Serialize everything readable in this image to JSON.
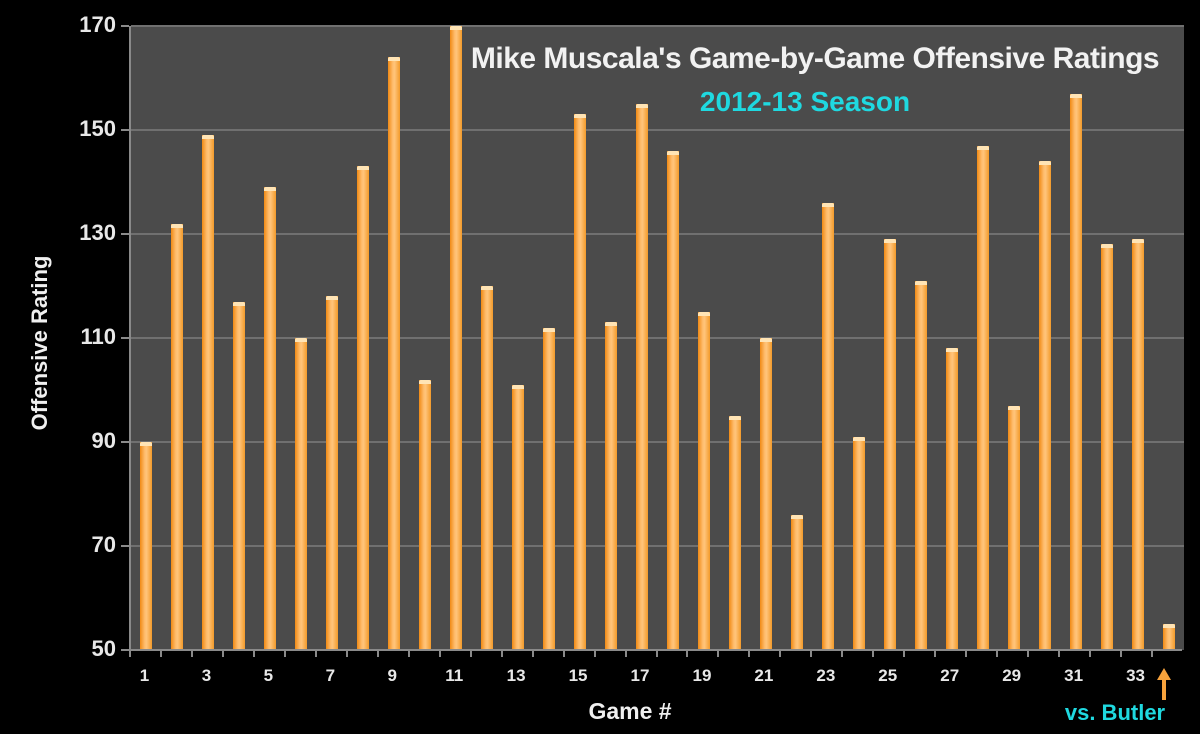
{
  "chart_data": {
    "type": "bar",
    "title": "Mike Muscala's Game-by-Game Offensive Ratings",
    "subtitle": "2012-13 Season",
    "xlabel": "Game #",
    "ylabel": "Offensive Rating",
    "ylim": [
      50,
      170
    ],
    "yticks": [
      50,
      70,
      90,
      110,
      130,
      150,
      170
    ],
    "xtick_labels": [
      "1",
      "3",
      "5",
      "7",
      "9",
      "11",
      "13",
      "15",
      "17",
      "19",
      "21",
      "23",
      "25",
      "27",
      "29",
      "31",
      "33"
    ],
    "grid": true,
    "annotation": "vs. Butler",
    "annotation_target": 34,
    "categories": [
      1,
      2,
      3,
      4,
      5,
      6,
      7,
      8,
      9,
      10,
      11,
      12,
      13,
      14,
      15,
      16,
      17,
      18,
      19,
      20,
      21,
      22,
      23,
      24,
      25,
      26,
      27,
      28,
      29,
      30,
      31,
      32,
      33,
      34
    ],
    "values": [
      90,
      132,
      149,
      117,
      139,
      110,
      118,
      143,
      164,
      102,
      170,
      120,
      101,
      112,
      153,
      113,
      155,
      146,
      115,
      95,
      110,
      76,
      136,
      91,
      129,
      121,
      108,
      147,
      97,
      144,
      157,
      128,
      129,
      55
    ],
    "colors": {
      "bar": "#f7a23c",
      "background": "#4b4b4b",
      "title": "#f2f2f2",
      "subtitle": "#1fd9e0",
      "annotation": "#1fd9e0",
      "arrow": "#f7a23c"
    }
  }
}
